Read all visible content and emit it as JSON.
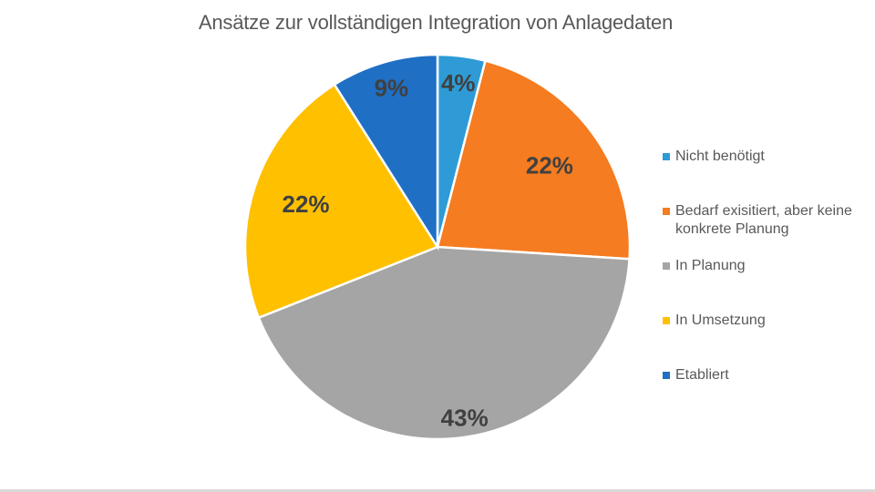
{
  "chart_data": {
    "type": "pie",
    "title": "Ansätze zur vollständigen Integration von Anlagedaten",
    "categories": [
      "Nicht benötigt",
      "Bedarf exisitiert, aber keine konkrete Planung",
      "In Planung",
      "In Umsetzung",
      "Etabliert"
    ],
    "values": [
      4,
      22,
      43,
      22,
      9
    ],
    "labels": [
      "4%",
      "22%",
      "43%",
      "22%",
      "9%"
    ],
    "colors": [
      "#2e9bd6",
      "#f57c20",
      "#a5a5a5",
      "#ffc000",
      "#1f6fc5"
    ],
    "legend_position": "right"
  }
}
